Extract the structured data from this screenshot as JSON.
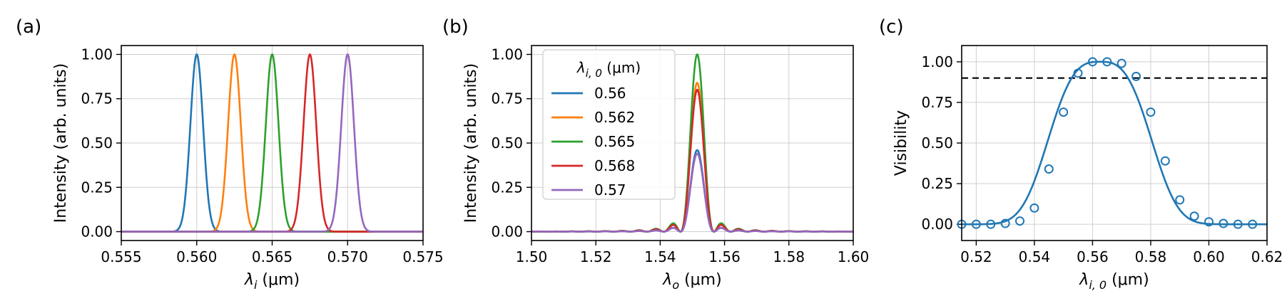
{
  "chart_data": [
    {
      "panel_label": "(a)",
      "type": "line",
      "xlabel_sym": "λ",
      "xlabel_sub": "i",
      "xlabel_unit": " (μm)",
      "ylabel": "Intensity (arb. units)",
      "xlim": [
        0.555,
        0.575
      ],
      "ylim": [
        -0.05,
        1.05
      ],
      "xticks": [
        "0.555",
        "0.560",
        "0.565",
        "0.570",
        "0.575"
      ],
      "xtick_values": [
        0.555,
        0.56,
        0.565,
        0.57,
        0.575
      ],
      "yticks": [
        "0.00",
        "0.25",
        "0.50",
        "0.75",
        "1.00"
      ],
      "ytick_values": [
        0,
        0.25,
        0.5,
        0.75,
        1.0
      ],
      "grid": true,
      "series": [
        {
          "center": 0.56,
          "color": "#1f77b4",
          "values": [
            [
              0.5585,
              0.0
            ],
            [
              0.559,
              0.06
            ],
            [
              0.5595,
              0.55
            ],
            [
              0.56,
              1.0
            ],
            [
              0.5605,
              0.55
            ],
            [
              0.561,
              0.06
            ],
            [
              0.5615,
              0.0
            ]
          ]
        },
        {
          "center": 0.5625,
          "color": "#ff7f0e",
          "values": [
            [
              0.561,
              0.0
            ],
            [
              0.5615,
              0.06
            ],
            [
              0.562,
              0.55
            ],
            [
              0.5625,
              1.0
            ],
            [
              0.563,
              0.55
            ],
            [
              0.5635,
              0.06
            ],
            [
              0.564,
              0.0
            ]
          ]
        },
        {
          "center": 0.565,
          "color": "#2ca02c",
          "values": [
            [
              0.5635,
              0.0
            ],
            [
              0.564,
              0.06
            ],
            [
              0.5645,
              0.55
            ],
            [
              0.565,
              1.0
            ],
            [
              0.5655,
              0.55
            ],
            [
              0.566,
              0.06
            ],
            [
              0.5665,
              0.0
            ]
          ]
        },
        {
          "center": 0.5675,
          "color": "#d62728",
          "values": [
            [
              0.566,
              0.0
            ],
            [
              0.5665,
              0.06
            ],
            [
              0.567,
              0.55
            ],
            [
              0.5675,
              1.0
            ],
            [
              0.568,
              0.55
            ],
            [
              0.5685,
              0.06
            ],
            [
              0.569,
              0.0
            ]
          ]
        },
        {
          "center": 0.57,
          "color": "#9467bd",
          "values": [
            [
              0.5685,
              0.0
            ],
            [
              0.569,
              0.06
            ],
            [
              0.5695,
              0.55
            ],
            [
              0.57,
              1.0
            ],
            [
              0.5705,
              0.55
            ],
            [
              0.571,
              0.06
            ],
            [
              0.5715,
              0.0
            ]
          ]
        }
      ]
    },
    {
      "panel_label": "(b)",
      "type": "line",
      "xlabel_sym": "λ",
      "xlabel_sub": "o",
      "xlabel_unit": " (μm)",
      "ylabel": "Intensity (arb. units)",
      "xlim": [
        1.5,
        1.6
      ],
      "ylim": [
        -0.05,
        1.05
      ],
      "xticks": [
        "1.50",
        "1.52",
        "1.54",
        "1.56",
        "1.58",
        "1.60"
      ],
      "xtick_values": [
        1.5,
        1.52,
        1.54,
        1.56,
        1.58,
        1.6
      ],
      "yticks": [
        "0.00",
        "0.25",
        "0.50",
        "0.75",
        "1.00"
      ],
      "ytick_values": [
        0,
        0.25,
        0.5,
        0.75,
        1.0
      ],
      "grid": true,
      "legend": {
        "title_sym": "λ",
        "title_sub": "i, 0",
        "title_unit": " (μm)",
        "placement": "upper-left"
      },
      "series": [
        {
          "name": "0.56",
          "color": "#1f77b4",
          "peak": 0.46,
          "center": 1.5515
        },
        {
          "name": "0.562",
          "color": "#ff7f0e",
          "peak": 0.84,
          "center": 1.5515
        },
        {
          "name": "0.565",
          "color": "#2ca02c",
          "peak": 1.0,
          "center": 1.5515
        },
        {
          "name": "0.568",
          "color": "#d62728",
          "peak": 0.8,
          "center": 1.5515
        },
        {
          "name": "0.57",
          "color": "#9467bd",
          "peak": 0.44,
          "center": 1.5515
        }
      ]
    },
    {
      "panel_label": "(c)",
      "type": "line",
      "xlabel_sym": "λ",
      "xlabel_sub": "i, 0",
      "xlabel_unit": " (μm)",
      "ylabel": "Visibility",
      "xlim": [
        0.515,
        0.62
      ],
      "ylim": [
        -0.1,
        1.1
      ],
      "xticks": [
        "0.52",
        "0.54",
        "0.56",
        "0.58",
        "0.60",
        "0.62"
      ],
      "xtick_values": [
        0.52,
        0.54,
        0.56,
        0.58,
        0.6,
        0.62
      ],
      "yticks": [
        "0.00",
        "0.25",
        "0.50",
        "0.75",
        "1.00"
      ],
      "ytick_values": [
        0,
        0.25,
        0.5,
        0.75,
        1.0
      ],
      "grid": true,
      "threshold": 0.9,
      "threshold_color": "#000000",
      "color": "#1f77b4",
      "series": [
        {
          "markers": "circle",
          "x": [
            0.515,
            0.52,
            0.525,
            0.53,
            0.535,
            0.54,
            0.545,
            0.55,
            0.555,
            0.56,
            0.565,
            0.57,
            0.575,
            0.58,
            0.585,
            0.59,
            0.595,
            0.6,
            0.605,
            0.61,
            0.615
          ],
          "y": [
            0.0,
            0.0,
            0.0,
            0.005,
            0.02,
            0.1,
            0.34,
            0.69,
            0.93,
            1.0,
            1.0,
            0.99,
            0.91,
            0.69,
            0.39,
            0.15,
            0.05,
            0.015,
            0.005,
            0.0,
            0.0
          ]
        }
      ]
    }
  ]
}
